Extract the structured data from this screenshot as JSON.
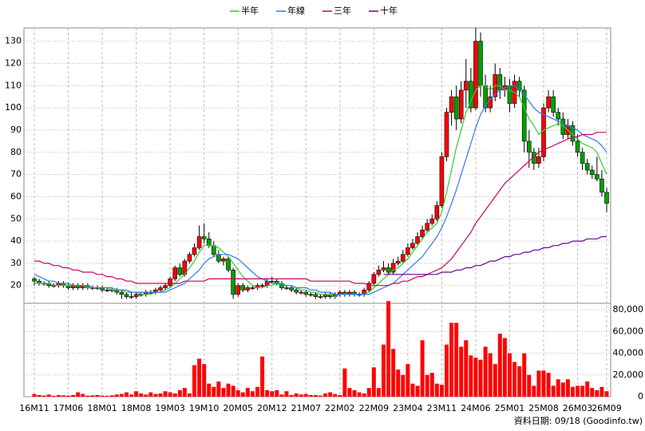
{
  "chart_data": {
    "type": "candlestick",
    "categories": [
      "16M11",
      null,
      null,
      null,
      null,
      null,
      null,
      "17M06",
      null,
      null,
      null,
      null,
      null,
      null,
      "18M01",
      null,
      null,
      null,
      null,
      null,
      null,
      "18M08",
      null,
      null,
      null,
      null,
      null,
      null,
      "19M03",
      null,
      null,
      null,
      null,
      null,
      null,
      "19M10",
      null,
      null,
      null,
      null,
      null,
      null,
      "20M05",
      null,
      null,
      null,
      null,
      null,
      null,
      "20M12",
      null,
      null,
      null,
      null,
      null,
      null,
      "21M07",
      null,
      null,
      null,
      null,
      null,
      null,
      "22M02",
      null,
      null,
      null,
      null,
      null,
      null,
      "22M09",
      null,
      null,
      null,
      null,
      null,
      null,
      "23M04",
      null,
      null,
      null,
      null,
      null,
      null,
      "23M11",
      null,
      null,
      null,
      null,
      null,
      null,
      "24M06",
      null,
      null,
      null,
      null,
      null,
      null,
      "25M01",
      null,
      null,
      null,
      null,
      null,
      null,
      "25M08",
      null,
      null,
      null,
      null,
      null,
      null,
      "26M03",
      null,
      null,
      null,
      null,
      null,
      "26M09"
    ],
    "ohlc": [
      [
        23,
        24,
        20,
        22
      ],
      [
        22,
        23,
        20,
        21
      ],
      [
        21,
        22,
        20,
        21
      ],
      [
        21,
        22,
        19,
        20
      ],
      [
        20,
        21,
        19,
        20
      ],
      [
        20,
        22,
        19,
        21
      ],
      [
        21,
        22,
        19,
        20
      ],
      [
        20,
        21,
        18,
        19
      ],
      [
        19,
        21,
        18,
        20
      ],
      [
        20,
        21,
        18,
        19
      ],
      [
        19,
        21,
        18,
        20
      ],
      [
        20,
        21,
        18,
        19
      ],
      [
        19,
        20,
        18,
        19
      ],
      [
        19,
        20,
        18,
        19
      ],
      [
        19,
        20,
        17,
        18
      ],
      [
        18,
        19,
        17,
        18
      ],
      [
        18,
        19,
        17,
        18
      ],
      [
        18,
        19,
        16,
        17
      ],
      [
        17,
        18,
        14,
        16
      ],
      [
        16,
        17,
        14,
        15
      ],
      [
        15,
        17,
        14,
        15
      ],
      [
        15,
        17,
        14,
        16
      ],
      [
        16,
        17,
        15,
        16
      ],
      [
        16,
        18,
        15,
        17
      ],
      [
        17,
        18,
        16,
        17
      ],
      [
        17,
        19,
        16,
        18
      ],
      [
        18,
        20,
        17,
        19
      ],
      [
        19,
        21,
        18,
        20
      ],
      [
        20,
        24,
        19,
        23
      ],
      [
        23,
        29,
        22,
        28
      ],
      [
        28,
        30,
        24,
        25
      ],
      [
        25,
        32,
        24,
        31
      ],
      [
        31,
        35,
        30,
        34
      ],
      [
        34,
        39,
        33,
        37
      ],
      [
        37,
        47,
        36,
        42
      ],
      [
        42,
        48,
        39,
        41
      ],
      [
        41,
        44,
        37,
        38
      ],
      [
        38,
        40,
        33,
        34
      ],
      [
        34,
        36,
        30,
        31
      ],
      [
        31,
        33,
        29,
        32
      ],
      [
        32,
        33,
        26,
        27
      ],
      [
        27,
        28,
        14,
        16
      ],
      [
        16,
        21,
        15,
        20
      ],
      [
        20,
        21,
        17,
        18
      ],
      [
        18,
        20,
        17,
        19
      ],
      [
        19,
        20,
        18,
        19
      ],
      [
        19,
        21,
        18,
        20
      ],
      [
        20,
        21,
        19,
        20
      ],
      [
        20,
        23,
        19,
        22
      ],
      [
        22,
        24,
        21,
        22
      ],
      [
        22,
        23,
        20,
        21
      ],
      [
        21,
        22,
        18,
        19
      ],
      [
        19,
        20,
        18,
        19
      ],
      [
        19,
        20,
        17,
        18
      ],
      [
        18,
        19,
        16,
        17
      ],
      [
        17,
        18,
        16,
        17
      ],
      [
        17,
        18,
        15,
        16
      ],
      [
        16,
        17,
        15,
        16
      ],
      [
        16,
        17,
        14,
        15
      ],
      [
        15,
        16,
        14,
        15
      ],
      [
        15,
        17,
        14,
        16
      ],
      [
        16,
        17,
        14,
        15
      ],
      [
        15,
        17,
        14,
        16
      ],
      [
        16,
        18,
        15,
        17
      ],
      [
        17,
        18,
        15,
        16
      ],
      [
        16,
        18,
        15,
        17
      ],
      [
        17,
        18,
        15,
        16
      ],
      [
        16,
        17,
        15,
        16
      ],
      [
        16,
        19,
        15,
        18
      ],
      [
        18,
        22,
        17,
        21
      ],
      [
        21,
        26,
        20,
        25
      ],
      [
        25,
        29,
        24,
        27
      ],
      [
        27,
        31,
        26,
        28
      ],
      [
        28,
        30,
        25,
        26
      ],
      [
        26,
        32,
        25,
        30
      ],
      [
        30,
        33,
        29,
        31
      ],
      [
        31,
        36,
        30,
        34
      ],
      [
        34,
        39,
        33,
        37
      ],
      [
        37,
        41,
        36,
        39
      ],
      [
        39,
        44,
        38,
        42
      ],
      [
        42,
        47,
        41,
        45
      ],
      [
        45,
        50,
        44,
        48
      ],
      [
        48,
        52,
        47,
        50
      ],
      [
        50,
        58,
        49,
        56
      ],
      [
        56,
        80,
        55,
        78
      ],
      [
        78,
        100,
        76,
        98
      ],
      [
        98,
        108,
        92,
        105
      ],
      [
        105,
        110,
        90,
        95
      ],
      [
        95,
        112,
        93,
        108
      ],
      [
        108,
        122,
        100,
        112
      ],
      [
        112,
        118,
        98,
        100
      ],
      [
        100,
        136,
        99,
        130
      ],
      [
        130,
        134,
        105,
        110
      ],
      [
        110,
        115,
        98,
        100
      ],
      [
        100,
        110,
        98,
        105
      ],
      [
        105,
        120,
        103,
        115
      ],
      [
        115,
        118,
        104,
        108
      ],
      [
        108,
        114,
        105,
        110
      ],
      [
        110,
        113,
        98,
        102
      ],
      [
        102,
        115,
        100,
        112
      ],
      [
        112,
        114,
        105,
        108
      ],
      [
        108,
        110,
        80,
        85
      ],
      [
        85,
        90,
        73,
        80
      ],
      [
        80,
        82,
        72,
        75
      ],
      [
        75,
        82,
        73,
        78
      ],
      [
        78,
        102,
        76,
        100
      ],
      [
        100,
        108,
        98,
        105
      ],
      [
        105,
        108,
        96,
        98
      ],
      [
        98,
        100,
        92,
        95
      ],
      [
        95,
        98,
        86,
        88
      ],
      [
        88,
        95,
        86,
        92
      ],
      [
        92,
        94,
        83,
        85
      ],
      [
        85,
        88,
        78,
        80
      ],
      [
        80,
        82,
        72,
        75
      ],
      [
        75,
        77,
        70,
        72
      ],
      [
        72,
        74,
        68,
        70
      ],
      [
        70,
        78,
        67,
        68
      ],
      [
        68,
        72,
        60,
        62
      ],
      [
        62,
        64,
        53,
        57
      ]
    ],
    "up_color": "#ff0000",
    "down_color": "#00a000",
    "series": [
      {
        "name": "半年",
        "color": "#33cc33",
        "values": [
          21,
          21,
          21,
          21,
          20,
          20,
          20,
          20,
          20,
          20,
          20,
          19,
          19,
          19,
          19,
          19,
          18,
          18,
          18,
          17,
          17,
          17,
          16,
          16,
          16,
          17,
          17,
          18,
          19,
          21,
          23,
          25,
          28,
          31,
          35,
          38,
          38,
          38,
          37,
          35,
          33,
          30,
          27,
          24,
          22,
          20,
          19,
          19,
          20,
          20,
          21,
          21,
          20,
          20,
          19,
          18,
          18,
          17,
          17,
          16,
          16,
          16,
          15,
          16,
          16,
          16,
          16,
          16,
          16,
          17,
          19,
          21,
          23,
          25,
          27,
          28,
          30,
          32,
          35,
          38,
          41,
          44,
          46,
          48,
          53,
          62,
          72,
          82,
          90,
          98,
          103,
          108,
          110,
          110,
          108,
          110,
          110,
          108,
          108,
          107,
          105,
          100,
          95,
          92,
          88,
          90,
          91,
          92,
          93,
          92,
          90,
          88,
          86,
          84,
          83,
          82,
          80,
          75,
          70
        ]
      },
      {
        "name": "年線",
        "color": "#3377ee",
        "values": [
          25,
          24,
          23,
          22,
          22,
          21,
          21,
          21,
          20,
          20,
          20,
          20,
          19,
          19,
          19,
          19,
          19,
          18,
          18,
          18,
          17,
          17,
          17,
          17,
          17,
          17,
          17,
          17,
          18,
          19,
          20,
          21,
          23,
          25,
          27,
          30,
          32,
          33,
          34,
          34,
          34,
          33,
          32,
          30,
          28,
          26,
          24,
          23,
          22,
          21,
          21,
          20,
          20,
          20,
          19,
          19,
          19,
          18,
          18,
          17,
          17,
          17,
          16,
          16,
          16,
          16,
          16,
          16,
          16,
          16,
          17,
          18,
          19,
          20,
          21,
          23,
          25,
          27,
          29,
          31,
          33,
          36,
          39,
          42,
          46,
          51,
          57,
          63,
          70,
          77,
          84,
          91,
          97,
          101,
          104,
          106,
          108,
          109,
          110,
          110,
          108,
          106,
          103,
          100,
          98,
          97,
          96,
          95,
          94,
          93,
          92,
          91,
          90,
          88,
          87,
          86,
          85,
          83,
          80
        ]
      },
      {
        "name": "三年",
        "color": "#cc0066",
        "values": [
          31,
          31,
          30,
          30,
          29,
          29,
          28,
          28,
          27,
          27,
          26,
          26,
          26,
          25,
          25,
          24,
          24,
          23,
          23,
          22,
          22,
          21,
          21,
          21,
          21,
          21,
          21,
          21,
          21,
          21,
          21,
          22,
          22,
          22,
          22,
          22,
          23,
          23,
          23,
          23,
          23,
          23,
          23,
          23,
          23,
          23,
          23,
          23,
          23,
          23,
          23,
          23,
          23,
          23,
          23,
          23,
          23,
          22,
          22,
          22,
          22,
          22,
          22,
          22,
          22,
          22,
          21,
          21,
          21,
          20,
          20,
          20,
          20,
          20,
          21,
          21,
          22,
          22,
          23,
          24,
          24,
          25,
          26,
          27,
          28,
          30,
          32,
          35,
          38,
          41,
          44,
          48,
          51,
          54,
          57,
          60,
          63,
          66,
          68,
          70,
          72,
          74,
          76,
          78,
          80,
          81,
          82,
          83,
          84,
          85,
          86,
          87,
          87,
          88,
          88,
          88,
          89,
          89,
          89
        ]
      },
      {
        "name": "十年",
        "color": "#660099",
        "values": [
          null,
          null,
          null,
          null,
          null,
          null,
          null,
          null,
          null,
          null,
          null,
          null,
          null,
          null,
          null,
          null,
          null,
          null,
          null,
          null,
          null,
          null,
          null,
          null,
          null,
          null,
          null,
          null,
          null,
          null,
          null,
          null,
          null,
          null,
          null,
          null,
          null,
          null,
          null,
          null,
          null,
          null,
          null,
          null,
          null,
          null,
          null,
          null,
          null,
          null,
          null,
          null,
          null,
          null,
          null,
          null,
          null,
          null,
          null,
          null,
          null,
          null,
          null,
          null,
          null,
          null,
          null,
          null,
          null,
          null,
          null,
          null,
          25,
          25,
          25,
          25,
          25,
          25,
          25,
          25,
          25,
          25,
          25,
          25,
          26,
          26,
          26,
          27,
          27,
          28,
          28,
          29,
          29,
          30,
          31,
          31,
          32,
          33,
          33,
          34,
          34,
          35,
          35,
          36,
          36,
          37,
          37,
          38,
          38,
          39,
          39,
          40,
          40,
          40,
          41,
          41,
          41,
          42,
          42
        ]
      }
    ],
    "ylim": [
      12,
      136
    ],
    "yticks": [
      20,
      30,
      40,
      50,
      60,
      70,
      80,
      90,
      100,
      110,
      120,
      130
    ],
    "volume": {
      "color": "#ff0000",
      "ylim": [
        0,
        86000
      ],
      "yticks": [
        0,
        {
          "value": 20000,
          "label": "20,000"
        },
        {
          "value": 40000,
          "label": "40,000"
        },
        {
          "value": 60000,
          "label": "60,000"
        },
        {
          "value": 80000,
          "label": "80,000"
        }
      ],
      "values": [
        2500,
        1500,
        1000,
        2000,
        800,
        1500,
        1200,
        1000,
        1500,
        4000,
        2500,
        1000,
        1200,
        1500,
        1000,
        800,
        1200,
        2000,
        2500,
        4000,
        2000,
        5000,
        3000,
        2000,
        4000,
        2500,
        3000,
        5000,
        4000,
        3000,
        6000,
        8000,
        3000,
        29000,
        35000,
        30000,
        12000,
        9000,
        14000,
        8000,
        12000,
        10000,
        6000,
        4000,
        8000,
        5000,
        9000,
        37000,
        6000,
        5000,
        6000,
        2000,
        5000,
        1500,
        3000,
        2000,
        2500,
        1500,
        1500,
        1000,
        3000,
        4000,
        2500,
        1500,
        26000,
        8000,
        6000,
        4000,
        3000,
        8000,
        27000,
        8000,
        48000,
        88000,
        44000,
        25000,
        20000,
        30000,
        12000,
        10000,
        52000,
        20000,
        22000,
        12000,
        11000,
        48000,
        68000,
        68000,
        46000,
        52000,
        38000,
        36000,
        34000,
        46000,
        40000,
        30000,
        58000,
        54000,
        40000,
        32000,
        28000,
        40000,
        20000,
        10000,
        24000,
        24000,
        22000,
        10000,
        16000,
        13000,
        16000,
        9000,
        10000,
        10000,
        14000,
        8000,
        6000,
        9000,
        5000
      ]
    },
    "grid": true,
    "legend": "top",
    "source": "資料日期: 09/18 (Goodinfo.tw)"
  }
}
